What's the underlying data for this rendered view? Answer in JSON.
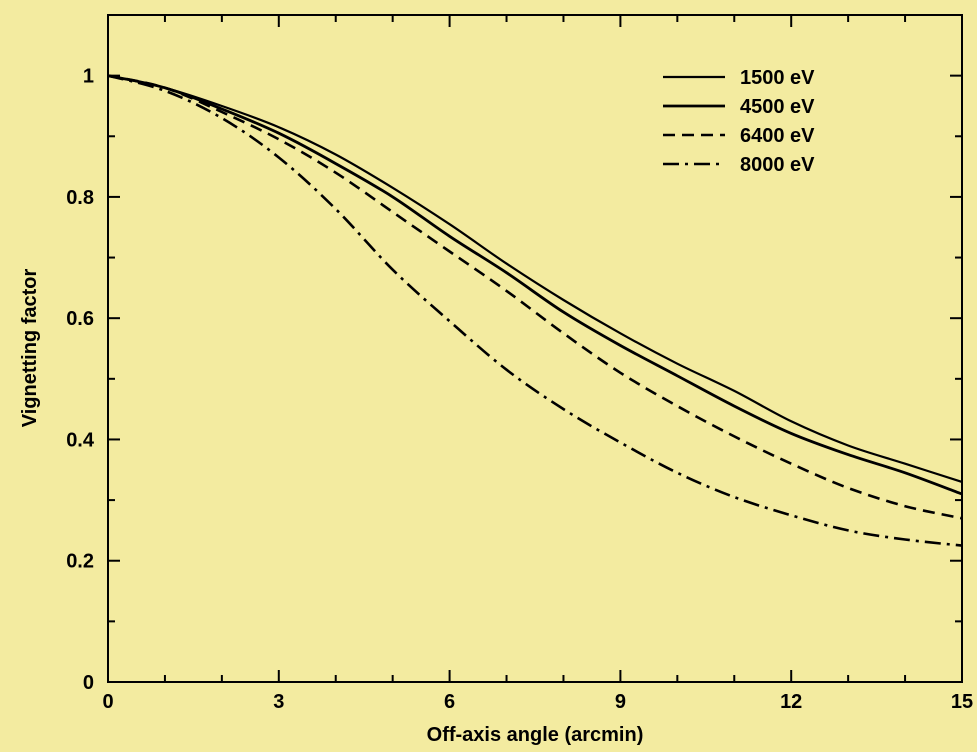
{
  "chart_data": {
    "type": "line",
    "xlabel": "Off-axis angle (arcmin)",
    "ylabel": "Vignetting factor",
    "xlim": [
      0,
      15
    ],
    "ylim": [
      0,
      1.1
    ],
    "xticks": [
      0,
      3,
      6,
      9,
      12,
      15
    ],
    "xtick_labels": [
      "0",
      "3",
      "6",
      "9",
      "12",
      "15"
    ],
    "yticks": [
      0,
      0.2,
      0.4,
      0.6,
      0.8,
      1
    ],
    "ytick_labels": [
      "0",
      "0.2",
      "0.4",
      "0.6",
      "0.8",
      "1"
    ],
    "grid": false,
    "legend_position": "top-right",
    "x": [
      0,
      1,
      2,
      3,
      4,
      5,
      6,
      7,
      8,
      9,
      10,
      11,
      12,
      13,
      14,
      15
    ],
    "series": [
      {
        "name": "1500 eV",
        "dash": "solid-thin",
        "values": [
          1.0,
          0.98,
          0.95,
          0.915,
          0.87,
          0.815,
          0.755,
          0.69,
          0.63,
          0.575,
          0.525,
          0.48,
          0.43,
          0.39,
          0.36,
          0.33
        ]
      },
      {
        "name": "4500 eV",
        "dash": "solid",
        "values": [
          1.0,
          0.98,
          0.945,
          0.905,
          0.855,
          0.8,
          0.735,
          0.675,
          0.61,
          0.555,
          0.505,
          0.455,
          0.41,
          0.375,
          0.345,
          0.31
        ]
      },
      {
        "name": "6400 eV",
        "dash": "dashed",
        "values": [
          1.0,
          0.98,
          0.94,
          0.895,
          0.84,
          0.775,
          0.71,
          0.645,
          0.575,
          0.51,
          0.455,
          0.405,
          0.36,
          0.32,
          0.29,
          0.27
        ]
      },
      {
        "name": "8000 eV",
        "dash": "dash-dot",
        "values": [
          1.0,
          0.975,
          0.93,
          0.865,
          0.78,
          0.68,
          0.595,
          0.515,
          0.45,
          0.395,
          0.345,
          0.305,
          0.275,
          0.25,
          0.235,
          0.225
        ]
      }
    ]
  }
}
